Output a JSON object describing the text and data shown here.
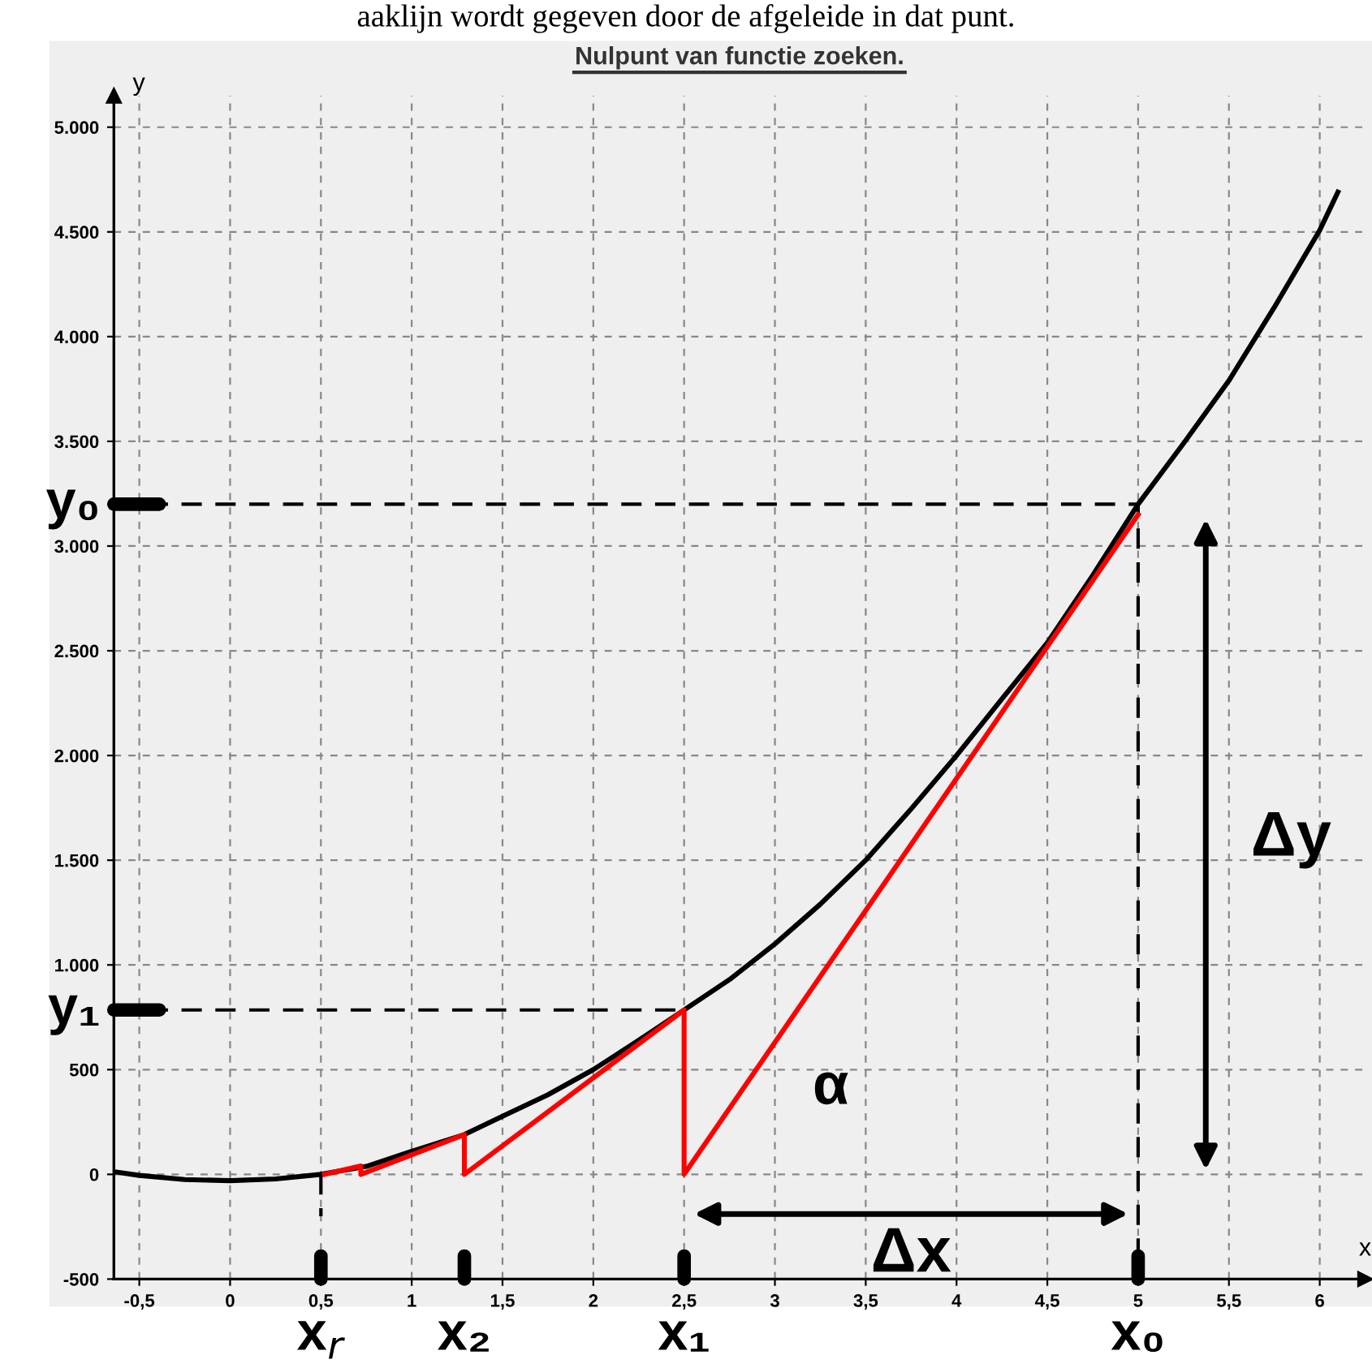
{
  "chart_data": {
    "type": "line",
    "title": "Nulpunt van functie zoeken.",
    "xlabel": "x",
    "ylabel": "y",
    "xlim": [
      -0.64,
      6.25
    ],
    "ylim": [
      -500,
      5150
    ],
    "xticks": [
      {
        "value": -0.5,
        "label": "-0,5"
      },
      0,
      {
        "value": 0.5,
        "label": "0,5"
      },
      1,
      {
        "value": 1.5,
        "label": "1,5"
      },
      2,
      {
        "value": 2.5,
        "label": "2,5"
      },
      3,
      {
        "value": 3.5,
        "label": "3,5"
      },
      4,
      {
        "value": 4.5,
        "label": "4,5"
      },
      5,
      {
        "value": 5.5,
        "label": "5,5"
      },
      6
    ],
    "yticks": [
      -500,
      0,
      500,
      {
        "value": 1000,
        "label": "1.000"
      },
      {
        "value": 1500,
        "label": "1.500"
      },
      {
        "value": 2000,
        "label": "2.000"
      },
      {
        "value": 2500,
        "label": "2.500"
      },
      {
        "value": 3000,
        "label": "3.000"
      },
      {
        "value": 3500,
        "label": "3.500"
      },
      {
        "value": 4000,
        "label": "4.000"
      },
      {
        "value": 4500,
        "label": "4.500"
      },
      {
        "value": 5000,
        "label": "5.000"
      }
    ],
    "grid": true,
    "legend": false,
    "marker": "none",
    "series": [
      {
        "color": "#000000",
        "line_style": "solid",
        "x": [
          -0.62,
          -0.5,
          -0.25,
          0,
          0.25,
          0.5,
          0.75,
          1,
          1.29,
          1.5,
          1.75,
          2,
          2.25,
          2.5,
          2.75,
          3,
          3.25,
          3.5,
          3.75,
          4,
          4.25,
          4.5,
          4.75,
          5,
          5.25,
          5.5,
          5.75,
          6,
          6.1
        ],
        "values": [
          10,
          -5,
          -25,
          -30,
          -22,
          0,
          38,
          110,
          190,
          277,
          380,
          500,
          640,
          785,
          930,
          1100,
          1290,
          1500,
          1745,
          2000,
          2270,
          2538,
          2860,
          3200,
          3490,
          3790,
          4140,
          4508,
          4690
        ]
      },
      {
        "color": "#ff0000",
        "line_style": "solid",
        "x": [
          5.0,
          2.5,
          2.5,
          1.29,
          1.29,
          0.72,
          0.72,
          0.52
        ],
        "values": [
          3150,
          0,
          785,
          0,
          190,
          0,
          40,
          0
        ]
      },
      {
        "color": "#000000",
        "line_style": "dashed",
        "x": [
          -0.64,
          5.0,
          5.0
        ],
        "values": [
          3200,
          3200,
          -500
        ]
      },
      {
        "color": "#000000",
        "line_style": "dashed",
        "x": [
          -0.64,
          2.5
        ],
        "values": [
          785,
          785
        ]
      },
      {
        "color": "#000000",
        "line_style": "dashed",
        "x": [
          0.5,
          0.5
        ],
        "values": [
          0,
          -200
        ]
      }
    ],
    "annotations": [
      "aaklijn wordt gegeven door de afgeleide in dat punt.",
      {
        "text": "x$_{r}$",
        "x": 0.5,
        "y": 0
      },
      {
        "text": "x₂",
        "x": 1.29,
        "y": 0
      },
      {
        "text": "x₁",
        "x": 2.5,
        "y": 0
      },
      {
        "text": "x₀",
        "x": 5.0,
        "y": 0
      },
      {
        "text": "y₀",
        "x": -0.64,
        "y": 3200
      },
      {
        "text": "y₁",
        "x": -0.64,
        "y": 785
      },
      "Δx",
      "Δy",
      "α"
    ]
  }
}
